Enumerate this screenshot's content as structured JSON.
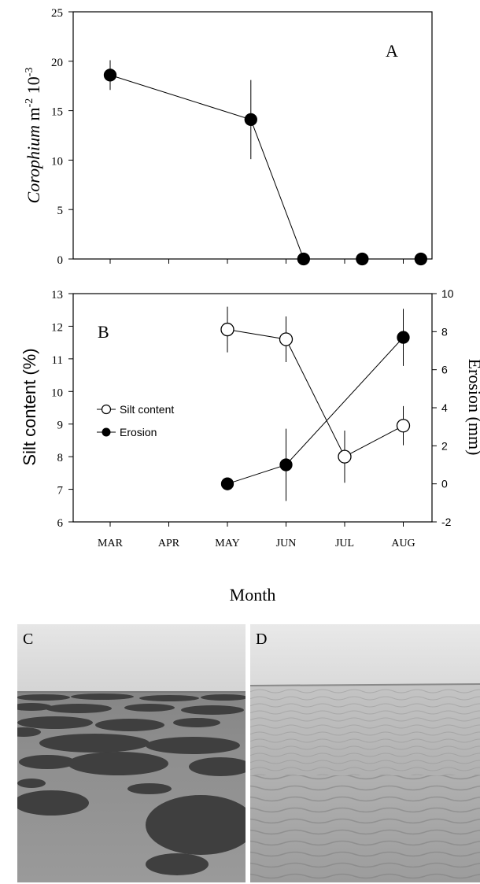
{
  "chart_data": [
    {
      "panel": "A",
      "type": "line",
      "ylabel_italic": "Corophium",
      "ylabel_unit": " m",
      "ylabel_sup1": "-2",
      "ylabel_mid": " 10",
      "ylabel_sup2": "-3",
      "ylim": [
        0,
        25
      ],
      "yticks": [
        "0",
        "5",
        "10",
        "15",
        "20",
        "25"
      ],
      "ytick_values": [
        0,
        5,
        10,
        15,
        20,
        25
      ],
      "categories": [
        "MAR",
        "APR",
        "MAY",
        "JUN",
        "JUL",
        "AUG"
      ],
      "series": [
        {
          "marker": "filled-circle",
          "points": [
            {
              "x": 0.0,
              "y": 18.6,
              "err": 1.5
            },
            {
              "x": 2.4,
              "y": 14.1,
              "err": 4.0
            },
            {
              "x": 3.3,
              "y": 0,
              "err": 0
            },
            {
              "x": 4.3,
              "y": 0,
              "err": 0
            },
            {
              "x": 5.3,
              "y": 0,
              "err": 0
            }
          ]
        }
      ]
    },
    {
      "panel": "B",
      "type": "line",
      "ylabel": "Silt content (%)",
      "ylim": [
        6,
        13
      ],
      "yticks": [
        "6",
        "7",
        "8",
        "9",
        "10",
        "11",
        "12",
        "13"
      ],
      "ytick_values": [
        6,
        7,
        8,
        9,
        10,
        11,
        12,
        13
      ],
      "y2label": "Erosion (mm)",
      "y2lim": [
        -2,
        10
      ],
      "y2ticks": [
        "-2",
        "0",
        "2",
        "4",
        "6",
        "8",
        "10"
      ],
      "y2tick_values": [
        -2,
        0,
        2,
        4,
        6,
        8,
        10
      ],
      "xlabel": "Month",
      "categories": [
        "MAR",
        "APR",
        "MAY",
        "JUN",
        "JUL",
        "AUG"
      ],
      "legend_position": "center-left",
      "series": [
        {
          "name": "Silt content",
          "marker": "open-circle",
          "axis": "left",
          "points": [
            {
              "x": 2.0,
              "y": 11.9,
              "err": 0.7
            },
            {
              "x": 3.0,
              "y": 11.6,
              "err": 0.7
            },
            {
              "x": 4.0,
              "y": 8.0,
              "err": 0.8
            },
            {
              "x": 5.0,
              "y": 8.95,
              "err": 0.6
            }
          ]
        },
        {
          "name": "Erosion",
          "marker": "filled-circle",
          "axis": "right",
          "points": [
            {
              "x": 2.0,
              "y": 0.0,
              "err": 0
            },
            {
              "x": 3.0,
              "y": 1.0,
              "err": 1.9
            },
            {
              "x": 5.0,
              "y": 7.7,
              "err": 1.5
            }
          ]
        }
      ]
    }
  ],
  "photos": {
    "c_label": "C",
    "d_label": "D"
  }
}
